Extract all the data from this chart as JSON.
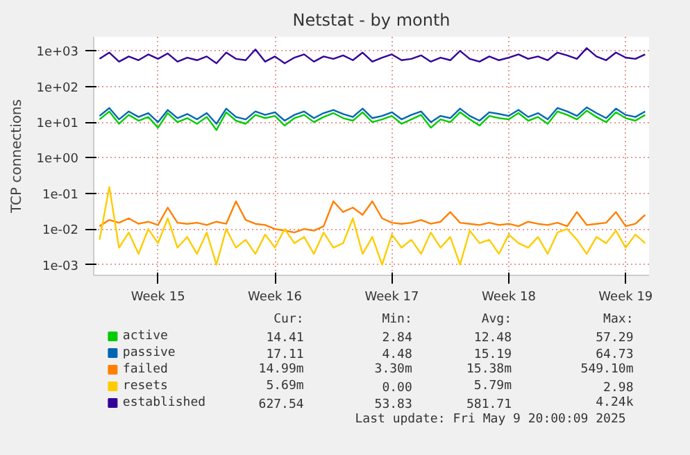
{
  "chart_data": {
    "type": "line",
    "title": "Netstat - by month",
    "ylabel": "TCP connections",
    "log": true,
    "grid": true,
    "legend": "bottom",
    "marker": "none",
    "line_style": "solid",
    "ylim": [
      0.0005,
      2500
    ],
    "yticks": [
      {
        "value": 0.001,
        "label": "1e-03"
      },
      {
        "value": 0.01,
        "label": "1e-02"
      },
      {
        "value": 0.1,
        "label": "1e-01"
      },
      {
        "value": 1,
        "label": "1e+00"
      },
      {
        "value": 10,
        "label": "1e+01"
      },
      {
        "value": 100,
        "label": "1e+02"
      },
      {
        "value": 1000,
        "label": "1e+03"
      }
    ],
    "categories": [
      null,
      null,
      null,
      null,
      null,
      null,
      "Week 15",
      null,
      null,
      null,
      null,
      null,
      null,
      null,
      null,
      null,
      null,
      null,
      "Week 16",
      null,
      null,
      null,
      null,
      null,
      null,
      null,
      null,
      null,
      null,
      null,
      "Week 17",
      null,
      null,
      null,
      null,
      null,
      null,
      null,
      null,
      null,
      null,
      null,
      "Week 18",
      null,
      null,
      null,
      null,
      null,
      null,
      null,
      null,
      null,
      null,
      null,
      "Week 19",
      null,
      null
    ],
    "series": [
      {
        "name": "active",
        "color": "#00cc00",
        "values": [
          12,
          20,
          9,
          16,
          11,
          14,
          7,
          18,
          10,
          13,
          9,
          14,
          6,
          19,
          11,
          9,
          16,
          13,
          15,
          8,
          13,
          16,
          10,
          14,
          18,
          13,
          11,
          19,
          10,
          12,
          15,
          9,
          12,
          16,
          7,
          12,
          10,
          19,
          12,
          8,
          15,
          13,
          12,
          18,
          11,
          14,
          9,
          20,
          16,
          12,
          21,
          14,
          10,
          19,
          13,
          11,
          16
        ]
      },
      {
        "name": "passive",
        "color": "#0066b3",
        "values": [
          15,
          25,
          12,
          20,
          14,
          18,
          10,
          22,
          13,
          17,
          12,
          18,
          9,
          24,
          14,
          12,
          20,
          16,
          19,
          11,
          16,
          20,
          13,
          18,
          22,
          17,
          14,
          24,
          13,
          15,
          19,
          12,
          16,
          20,
          10,
          15,
          13,
          24,
          15,
          11,
          19,
          17,
          15,
          22,
          14,
          18,
          12,
          25,
          20,
          15,
          26,
          18,
          13,
          24,
          16,
          14,
          20
        ]
      },
      {
        "name": "failed",
        "color": "#ff8000",
        "values": [
          0.012,
          0.018,
          0.015,
          0.02,
          0.014,
          0.016,
          0.013,
          0.04,
          0.015,
          0.014,
          0.015,
          0.013,
          0.016,
          0.014,
          0.06,
          0.018,
          0.014,
          0.013,
          0.01,
          0.009,
          0.008,
          0.01,
          0.009,
          0.012,
          0.06,
          0.03,
          0.04,
          0.025,
          0.06,
          0.02,
          0.015,
          0.014,
          0.015,
          0.018,
          0.014,
          0.016,
          0.03,
          0.015,
          0.014,
          0.013,
          0.015,
          0.013,
          0.014,
          0.012,
          0.016,
          0.014,
          0.013,
          0.015,
          0.012,
          0.03,
          0.013,
          0.014,
          0.015,
          0.03,
          0.012,
          0.014,
          0.025
        ]
      },
      {
        "name": "resets",
        "color": "#ffcc00",
        "values": [
          0.005,
          0.15,
          0.003,
          0.008,
          0.002,
          0.01,
          0.004,
          0.02,
          0.003,
          0.006,
          0.002,
          0.008,
          0.001,
          0.01,
          0.003,
          0.005,
          0.002,
          0.007,
          0.003,
          0.01,
          0.004,
          0.006,
          0.002,
          0.008,
          0.003,
          0.004,
          0.02,
          0.002,
          0.006,
          0.001,
          0.007,
          0.003,
          0.005,
          0.002,
          0.008,
          0.003,
          0.006,
          0.001,
          0.009,
          0.004,
          0.005,
          0.002,
          0.007,
          0.004,
          0.003,
          0.006,
          0.002,
          0.008,
          0.01,
          0.005,
          0.002,
          0.006,
          0.004,
          0.009,
          0.003,
          0.007,
          0.004
        ]
      },
      {
        "name": "established",
        "color": "#330099",
        "values": [
          600,
          900,
          500,
          700,
          550,
          800,
          600,
          850,
          500,
          650,
          550,
          700,
          450,
          900,
          600,
          550,
          1100,
          500,
          700,
          450,
          650,
          800,
          500,
          700,
          600,
          750,
          550,
          900,
          500,
          650,
          800,
          550,
          600,
          750,
          500,
          650,
          550,
          1000,
          600,
          500,
          700,
          550,
          650,
          800,
          600,
          700,
          550,
          900,
          750,
          600,
          1200,
          700,
          550,
          900,
          650,
          600,
          800
        ]
      }
    ],
    "annotations": [
      "Cur:",
      "Min:",
      "Avg:",
      "Max:",
      "14.41",
      "2.84",
      "12.48",
      "57.29",
      "17.11",
      "4.48",
      "15.19",
      "64.73",
      "14.99m",
      "3.30m",
      "15.38m",
      "549.10m",
      "5.69m",
      "0.00",
      "5.79m",
      "2.98",
      "627.54",
      "53.83",
      "581.71",
      "4.24k",
      "Last update: Fri May  9 20:00:09 2025"
    ]
  }
}
